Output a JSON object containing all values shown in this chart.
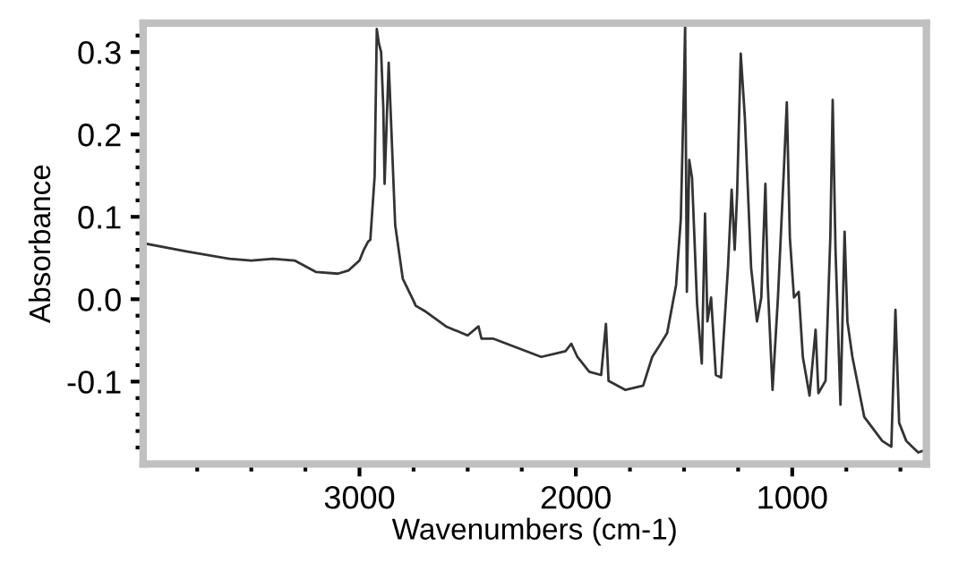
{
  "chart_data": {
    "type": "line",
    "xlabel": "Wavenumbers (cm-1)",
    "ylabel": "Absorbance",
    "grid": false,
    "legend": false,
    "marker": "none",
    "line_style": "solid",
    "xlim": [
      4000,
      380
    ],
    "ylim": [
      -0.2,
      0.335
    ],
    "xticks": [
      {
        "value": 3750,
        "label": null
      },
      {
        "value": 3500,
        "label": null
      },
      {
        "value": 3250,
        "label": null
      },
      3000,
      {
        "value": 2750,
        "label": null
      },
      {
        "value": 2500,
        "label": null
      },
      {
        "value": 2250,
        "label": null
      },
      2000,
      {
        "value": 1750,
        "label": null
      },
      {
        "value": 1500,
        "label": null
      },
      {
        "value": 1250,
        "label": null
      },
      1000,
      {
        "value": 750,
        "label": null
      },
      {
        "value": 500,
        "label": null
      }
    ],
    "yticks": [
      {
        "value": -0.18,
        "label": null
      },
      {
        "value": -0.16,
        "label": null
      },
      {
        "value": -0.14,
        "label": null
      },
      {
        "value": -0.12,
        "label": null
      },
      -0.1,
      {
        "value": -0.08,
        "label": null
      },
      {
        "value": -0.06,
        "label": null
      },
      {
        "value": -0.04,
        "label": null
      },
      {
        "value": -0.02,
        "label": null
      },
      {
        "value": 0.0,
        "label": "0.0"
      },
      {
        "value": 0.02,
        "label": null
      },
      {
        "value": 0.04,
        "label": null
      },
      {
        "value": 0.06,
        "label": null
      },
      {
        "value": 0.08,
        "label": null
      },
      0.1,
      {
        "value": 0.12,
        "label": null
      },
      {
        "value": 0.14,
        "label": null
      },
      {
        "value": 0.16,
        "label": null
      },
      {
        "value": 0.18,
        "label": null
      },
      0.2,
      {
        "value": 0.22,
        "label": null
      },
      {
        "value": 0.24,
        "label": null
      },
      {
        "value": 0.26,
        "label": null
      },
      {
        "value": 0.28,
        "label": null
      },
      0.3,
      {
        "value": 0.32,
        "label": null
      }
    ],
    "series": [
      {
        "color": "#333333",
        "x": [
          4000,
          3800,
          3600,
          3500,
          3400,
          3300,
          3200,
          3100,
          3050,
          3000,
          2980,
          2960,
          2950,
          2930,
          2920,
          2910,
          2900,
          2890,
          2884,
          2865,
          2835,
          2800,
          2750,
          2740,
          2700,
          2600,
          2500,
          2450,
          2436,
          2380,
          2160,
          2048,
          2021,
          1993,
          1938,
          1883,
          1861,
          1849,
          1772,
          1689,
          1647,
          1620,
          1578,
          1537,
          1515,
          1500,
          1495,
          1487,
          1476,
          1463,
          1440,
          1418,
          1403,
          1392,
          1375,
          1353,
          1329,
          1297,
          1280,
          1266,
          1255,
          1238,
          1219,
          1190,
          1163,
          1143,
          1124,
          1113,
          1091,
          1066,
          1039,
          1025,
          1011,
          992,
          970,
          951,
          920,
          892,
          879,
          846,
          824,
          813,
          800,
          777,
          758,
          745,
          722,
          667,
          584,
          542,
          523,
          506,
          473,
          418,
          384
        ],
        "values": [
          0.068,
          0.058,
          0.049,
          0.047,
          0.049,
          0.047,
          0.033,
          0.031,
          0.035,
          0.047,
          0.06,
          0.07,
          0.072,
          0.149,
          0.328,
          0.31,
          0.3,
          0.233,
          0.14,
          0.287,
          0.09,
          0.025,
          -0.002,
          -0.008,
          -0.014,
          -0.033,
          -0.044,
          -0.033,
          -0.048,
          -0.048,
          -0.07,
          -0.063,
          -0.054,
          -0.07,
          -0.088,
          -0.092,
          -0.03,
          -0.099,
          -0.11,
          -0.105,
          -0.07,
          -0.059,
          -0.041,
          0.017,
          0.097,
          0.264,
          0.332,
          0.009,
          0.169,
          0.147,
          -0.005,
          -0.078,
          0.104,
          -0.027,
          0.002,
          -0.092,
          -0.095,
          0.038,
          0.133,
          0.06,
          0.126,
          0.298,
          0.221,
          0.038,
          -0.027,
          0.002,
          0.14,
          0.017,
          -0.11,
          0.002,
          0.155,
          0.239,
          0.075,
          0.002,
          0.009,
          -0.07,
          -0.117,
          -0.037,
          -0.114,
          -0.099,
          0.075,
          0.242,
          0.06,
          -0.128,
          0.082,
          -0.027,
          -0.07,
          -0.143,
          -0.172,
          -0.179,
          -0.013,
          -0.15,
          -0.172,
          -0.186,
          -0.183
        ]
      }
    ]
  }
}
